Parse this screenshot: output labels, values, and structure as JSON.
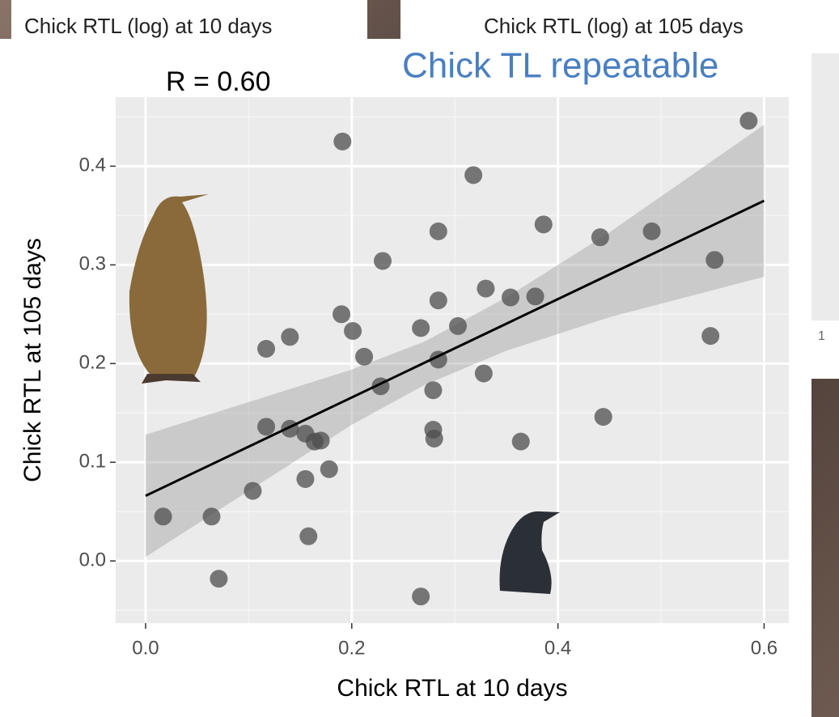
{
  "background": {
    "left_header": "Chick RTL (log) at 10 days",
    "right_header": "Chick RTL (log) at 105 days",
    "right_tick": "1"
  },
  "chart_data": {
    "type": "scatter",
    "title": "Chick TL repeatable",
    "annotation": "R = 0.60",
    "x_label": "Chick RTL at 10 days",
    "y_label": "Chick RTL at 105 days",
    "color": "#4d4d4d",
    "x": [
      0.017,
      0.064,
      0.071,
      0.104,
      0.117,
      0.117,
      0.14,
      0.14,
      0.155,
      0.155,
      0.158,
      0.164,
      0.17,
      0.178,
      0.191,
      0.19,
      0.201,
      0.212,
      0.23,
      0.228,
      0.267,
      0.267,
      0.279,
      0.279,
      0.28,
      0.284,
      0.284,
      0.284,
      0.303,
      0.318,
      0.328,
      0.33,
      0.354,
      0.364,
      0.378,
      0.386,
      0.444,
      0.441,
      0.491,
      0.548,
      0.552,
      0.585
    ],
    "values": [
      0.045,
      0.045,
      -0.018,
      0.071,
      0.215,
      0.136,
      0.227,
      0.134,
      0.129,
      0.083,
      0.025,
      0.121,
      0.122,
      0.093,
      0.425,
      0.25,
      0.233,
      0.207,
      0.304,
      0.177,
      0.236,
      -0.036,
      0.173,
      0.133,
      0.124,
      0.204,
      0.264,
      0.334,
      0.238,
      0.391,
      0.19,
      0.276,
      0.267,
      0.121,
      0.268,
      0.341,
      0.146,
      0.328,
      0.334,
      0.228,
      0.305,
      0.446
    ],
    "fit": {
      "x": [
        0,
        0.6
      ],
      "values": [
        0.066,
        0.365
      ],
      "color": "#000000"
    },
    "band": {
      "x": [
        0,
        0.1,
        0.2,
        0.27,
        0.35,
        0.45,
        0.6
      ],
      "lower": [
        0.004,
        0.071,
        0.138,
        0.178,
        0.213,
        0.247,
        0.288
      ],
      "upper": [
        0.128,
        0.161,
        0.194,
        0.222,
        0.267,
        0.333,
        0.442
      ]
    },
    "xlim": [
      -0.029,
      0.624
    ],
    "ylim": [
      -0.063,
      0.47
    ],
    "xticks": [
      {
        "value": 0,
        "label": "0.0"
      },
      0.2,
      0.4,
      0.6
    ],
    "yticks": [
      {
        "value": 0,
        "label": "0.0"
      },
      0.1,
      0.2,
      0.3,
      0.4
    ],
    "xminor": [
      0.1,
      0.3,
      0.5
    ],
    "yminor": [
      -0.05,
      0.05,
      0.15,
      0.25,
      0.35,
      0.45
    ],
    "grid": true
  }
}
